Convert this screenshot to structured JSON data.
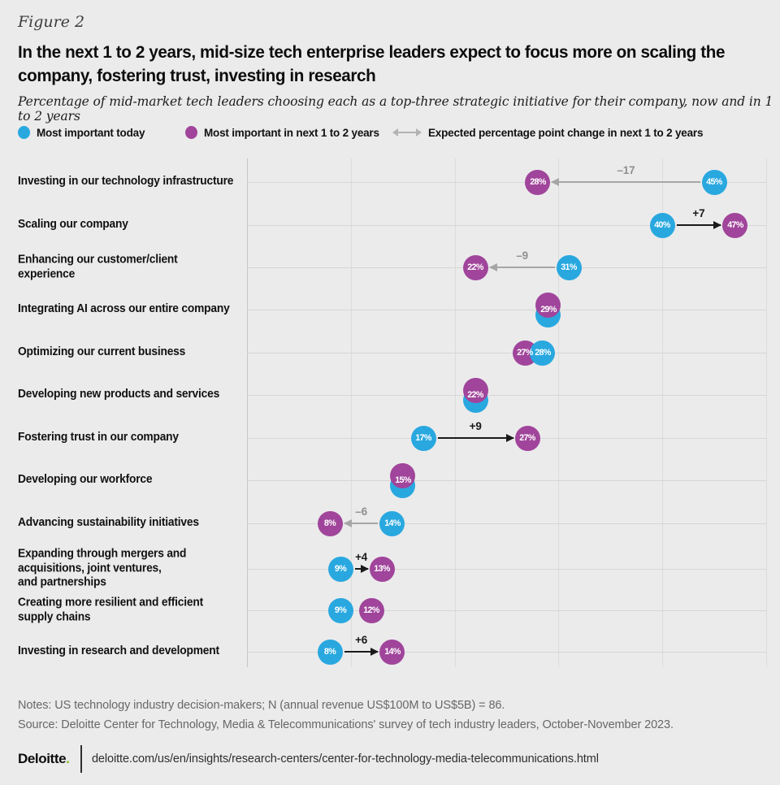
{
  "header": {
    "figure_label": "Figure 2",
    "title": "In the next 1 to 2 years, mid-size tech enterprise leaders expect to focus more on scaling the\ncompany, fostering trust, investing in research",
    "subtitle": "Percentage of mid-market tech leaders choosing each as a top-three strategic initiative for their company, now and in 1 to 2 years"
  },
  "legend": {
    "items": [
      {
        "label": "Most important today",
        "marker": "dot",
        "color": "#29a8e0"
      },
      {
        "label": "Most important in next 1 to 2 years",
        "marker": "dot",
        "color": "#a0459b"
      },
      {
        "label": "Expected percentage point change in next 1 to 2 years",
        "marker": "double-arrow",
        "color": "#b3b3b3"
      }
    ]
  },
  "colors": {
    "background": "#ebebeb",
    "today_blue": "#29a8e0",
    "future_purple": "#a0459b",
    "positive_arrow": "#1a1a1a",
    "negative_arrow": "#a6a6a6",
    "negative_label": "#8f8f8f",
    "logo_green": "#86bc25"
  },
  "chart_data": {
    "type": "scatter",
    "subtype": "dumbbell-dot-plot",
    "xlim": [
      0,
      50
    ],
    "gridline_step": 10,
    "grid": "on",
    "value_suffix": "%",
    "series_names": [
      "Most important today",
      "Most important in next 1 to 2 years"
    ],
    "rows": [
      {
        "label": "Investing in our technology infrastructure",
        "today": 45,
        "future": 28,
        "change": "–17",
        "overlap": false
      },
      {
        "label": "Scaling our company",
        "today": 40,
        "future": 47,
        "change": "+7",
        "overlap": false
      },
      {
        "label": "Enhancing our customer/client experience",
        "today": 31,
        "future": 22,
        "change": "–9",
        "overlap": false
      },
      {
        "label": "Integrating AI across our entire company",
        "today": 29,
        "future": 29,
        "change": null,
        "overlap": true
      },
      {
        "label": "Optimizing our current business",
        "today": 28,
        "future": 27,
        "change": null,
        "overlap": false
      },
      {
        "label": "Developing new products and services",
        "today": 22,
        "future": 22,
        "change": null,
        "overlap": true
      },
      {
        "label": "Fostering trust in our company",
        "today": 17,
        "future": 27,
        "change": "+9",
        "overlap": false
      },
      {
        "label": "Developing our workforce",
        "today": 15,
        "future": 15,
        "change": null,
        "overlap": true
      },
      {
        "label": "Advancing sustainability initiatives",
        "today": 14,
        "future": 8,
        "change": "–6",
        "overlap": false
      },
      {
        "label": "Expanding through mergers and\nacquisitions, joint ventures,\nand partnerships",
        "today": 9,
        "future": 13,
        "change": "+4",
        "overlap": false
      },
      {
        "label": "Creating more resilient and efficient\nsupply chains",
        "today": 9,
        "future": 12,
        "change": null,
        "overlap": false
      },
      {
        "label": "Investing in research and development",
        "today": 8,
        "future": 14,
        "change": "+6",
        "overlap": false
      }
    ]
  },
  "footer": {
    "notes": "Notes: US technology industry decision-makers; N (annual revenue US$100M to US$5B) = 86.",
    "source": "Source: Deloitte Center for Technology, Media & Telecommunications' survey of tech industry leaders, October-November 2023.",
    "logo_text": "Deloitte",
    "logo_period": ".",
    "url": "deloitte.com/us/en/insights/research-centers/center-for-technology-media-telecommunications.html"
  }
}
